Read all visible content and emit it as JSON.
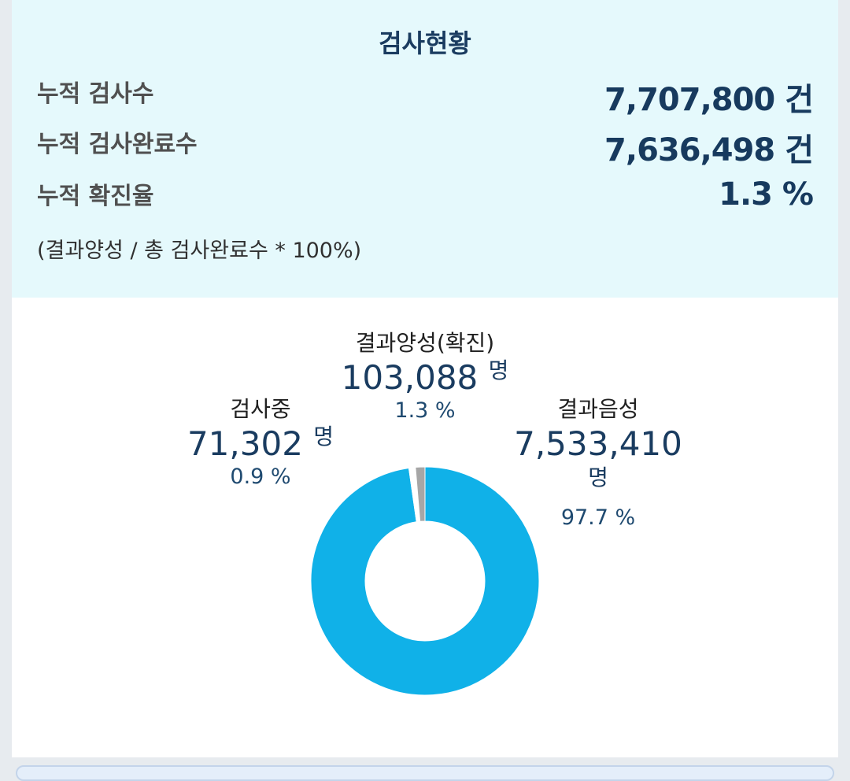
{
  "summary": {
    "title": "검사현황",
    "rows": [
      {
        "label": "누적 검사수",
        "value": "7,707,800 건"
      },
      {
        "label": "누적 검사완료수",
        "value": "7,636,498 건"
      },
      {
        "label": "누적 확진율",
        "value": "1.3 %"
      }
    ],
    "formula": "(결과양성 / 총 검사완료수 * 100%)"
  },
  "callouts": {
    "in_test": {
      "label": "검사중",
      "count": "71,302",
      "unit": "명",
      "percent": "0.9 %"
    },
    "positive": {
      "label": "결과양성(확진)",
      "count": "103,088",
      "unit": "명",
      "percent": "1.3 %"
    },
    "negative": {
      "label": "결과음성",
      "count": "7,533,410",
      "unit": "명",
      "percent": "97.7 %"
    }
  },
  "chart_data": {
    "type": "pie",
    "donut": true,
    "categories": [
      "결과음성",
      "검사중",
      "결과양성(확진)"
    ],
    "values": [
      7533410,
      71302,
      103088
    ],
    "colors": [
      "#10b1e8",
      "#ffffff",
      "#a6a6a6"
    ]
  }
}
